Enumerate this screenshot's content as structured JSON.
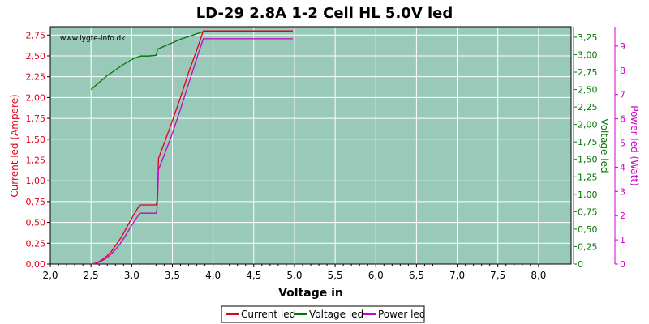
{
  "chart_data": {
    "type": "line",
    "title": "LD-29 2.8A 1-2 Cell HL 5.0V led",
    "xlabel": "Voltage in",
    "watermark": "www.lygte-info.dk",
    "x_ticks": [
      "2,0",
      "2,5",
      "3,0",
      "3,5",
      "4,0",
      "4,5",
      "5,0",
      "5,5",
      "6,0",
      "6,5",
      "7,0",
      "7,5",
      "8,0"
    ],
    "xlim": [
      2.0,
      8.4
    ],
    "axes": {
      "left": {
        "label": "Current led (Ampere)",
        "color": "#e0001b",
        "ylim": [
          0,
          2.85
        ],
        "ticks": [
          "0,00",
          "0,25",
          "0,50",
          "0,75",
          "1,00",
          "1,25",
          "1,50",
          "1,75",
          "2,00",
          "2,25",
          "2,50",
          "2,75"
        ]
      },
      "right1": {
        "label": "Voltage led",
        "color": "#007700",
        "ylim": [
          0,
          3.4
        ],
        "ticks": [
          "0",
          "0,25",
          "0,50",
          "0,75",
          "1,00",
          "1,25",
          "1,50",
          "1,75",
          "2,00",
          "2,25",
          "2,50",
          "2,75",
          "3,00",
          "3,25"
        ]
      },
      "right2": {
        "label": "Power led (Watt)",
        "color": "#cc00cc",
        "ylim": [
          0,
          9.8
        ],
        "ticks": [
          "0",
          "1",
          "2",
          "3",
          "4",
          "5",
          "6",
          "7",
          "8",
          "9"
        ]
      }
    },
    "plot_background": "#99c9b8",
    "grid": true,
    "legend_position": "bottom",
    "series": [
      {
        "name": "Current led",
        "axis": "left",
        "color": "#e0001b",
        "points": [
          [
            2.5,
            0.0
          ],
          [
            2.55,
            0.01
          ],
          [
            2.6,
            0.03
          ],
          [
            2.65,
            0.06
          ],
          [
            2.7,
            0.1
          ],
          [
            2.75,
            0.15
          ],
          [
            2.8,
            0.22
          ],
          [
            2.85,
            0.29
          ],
          [
            2.9,
            0.37
          ],
          [
            2.95,
            0.46
          ],
          [
            3.0,
            0.55
          ],
          [
            3.05,
            0.63
          ],
          [
            3.1,
            0.71
          ],
          [
            3.2,
            0.71
          ],
          [
            3.3,
            0.71
          ],
          [
            3.31,
            0.75
          ],
          [
            3.32,
            0.9
          ],
          [
            3.33,
            1.27
          ],
          [
            3.4,
            1.45
          ],
          [
            3.5,
            1.72
          ],
          [
            3.6,
            2.0
          ],
          [
            3.7,
            2.3
          ],
          [
            3.8,
            2.57
          ],
          [
            3.88,
            2.8
          ],
          [
            4.0,
            2.8
          ],
          [
            4.5,
            2.8
          ],
          [
            4.98,
            2.8
          ]
        ]
      },
      {
        "name": "Voltage led",
        "axis": "right1",
        "color": "#007700",
        "points": [
          [
            2.5,
            2.5
          ],
          [
            2.6,
            2.6
          ],
          [
            2.7,
            2.7
          ],
          [
            2.8,
            2.78
          ],
          [
            2.9,
            2.86
          ],
          [
            3.0,
            2.93
          ],
          [
            3.1,
            2.98
          ],
          [
            3.2,
            2.98
          ],
          [
            3.3,
            2.99
          ],
          [
            3.32,
            3.08
          ],
          [
            3.4,
            3.12
          ],
          [
            3.5,
            3.17
          ],
          [
            3.6,
            3.22
          ],
          [
            3.7,
            3.26
          ],
          [
            3.8,
            3.3
          ],
          [
            3.88,
            3.33
          ],
          [
            4.0,
            3.33
          ],
          [
            4.5,
            3.33
          ],
          [
            4.98,
            3.33
          ]
        ]
      },
      {
        "name": "Power led",
        "axis": "right2",
        "color": "#cc00cc",
        "points": [
          [
            2.5,
            0.0
          ],
          [
            2.55,
            0.02
          ],
          [
            2.6,
            0.08
          ],
          [
            2.65,
            0.16
          ],
          [
            2.7,
            0.27
          ],
          [
            2.75,
            0.42
          ],
          [
            2.8,
            0.6
          ],
          [
            2.85,
            0.8
          ],
          [
            2.9,
            1.05
          ],
          [
            2.95,
            1.32
          ],
          [
            3.0,
            1.6
          ],
          [
            3.05,
            1.85
          ],
          [
            3.1,
            2.1
          ],
          [
            3.2,
            2.1
          ],
          [
            3.3,
            2.1
          ],
          [
            3.31,
            2.2
          ],
          [
            3.32,
            2.8
          ],
          [
            3.33,
            3.9
          ],
          [
            3.4,
            4.5
          ],
          [
            3.5,
            5.4
          ],
          [
            3.6,
            6.4
          ],
          [
            3.7,
            7.45
          ],
          [
            3.8,
            8.5
          ],
          [
            3.88,
            9.3
          ],
          [
            4.0,
            9.3
          ],
          [
            4.5,
            9.3
          ],
          [
            4.98,
            9.3
          ]
        ]
      }
    ]
  }
}
